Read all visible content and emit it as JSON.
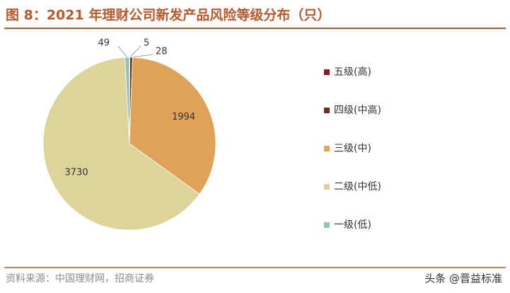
{
  "chart_data": {
    "type": "pie",
    "title": "图 8：2021 年理财公司新发产品风险等级分布（只）",
    "categories": [
      "五级(高)",
      "四级(中高)",
      "三级(中)",
      "二级(中低)",
      "一级(低)"
    ],
    "values": [
      5,
      28,
      1994,
      3730,
      49
    ],
    "colors": [
      "#8e1b1b",
      "#6e2c20",
      "#dfa258",
      "#ddd49a",
      "#8fc5b7"
    ],
    "legend": "right",
    "source": "资料来源：中国理财网，招商证券",
    "watermark": "头条 @晋益标准"
  }
}
